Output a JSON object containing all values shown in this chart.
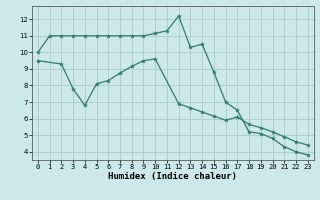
{
  "xlabel": "Humidex (Indice chaleur)",
  "bg_color": "#cce8e8",
  "grid_color": "#aacccc",
  "line_color": "#2e7d6e",
  "xlim": [
    -0.5,
    23.5
  ],
  "ylim": [
    3.5,
    12.8
  ],
  "yticks": [
    4,
    5,
    6,
    7,
    8,
    9,
    10,
    11,
    12
  ],
  "xticks": [
    0,
    1,
    2,
    3,
    4,
    5,
    6,
    7,
    8,
    9,
    10,
    11,
    12,
    13,
    14,
    15,
    16,
    17,
    18,
    19,
    20,
    21,
    22,
    23
  ],
  "line1_x": [
    0,
    1,
    2,
    3,
    4,
    5,
    6,
    7,
    8,
    9,
    10,
    11,
    12,
    13,
    14,
    15,
    16,
    17,
    18,
    19,
    20,
    21,
    22,
    23
  ],
  "line1_y": [
    10.0,
    11.0,
    11.0,
    11.0,
    11.0,
    11.0,
    11.0,
    11.0,
    11.0,
    11.0,
    11.15,
    11.3,
    12.2,
    10.3,
    10.5,
    8.8,
    7.0,
    6.5,
    5.2,
    5.1,
    4.8,
    4.3,
    4.0,
    3.8
  ],
  "line2_x": [
    0,
    2,
    3,
    4,
    5,
    6,
    7,
    8,
    9,
    10,
    12,
    13,
    14,
    15,
    16,
    17,
    18,
    19,
    20,
    21,
    22,
    23
  ],
  "line2_y": [
    9.5,
    9.3,
    7.8,
    6.8,
    8.1,
    8.3,
    8.75,
    9.15,
    9.5,
    9.6,
    6.9,
    6.65,
    6.4,
    6.15,
    5.9,
    6.1,
    5.65,
    5.45,
    5.2,
    4.9,
    4.6,
    4.4
  ]
}
